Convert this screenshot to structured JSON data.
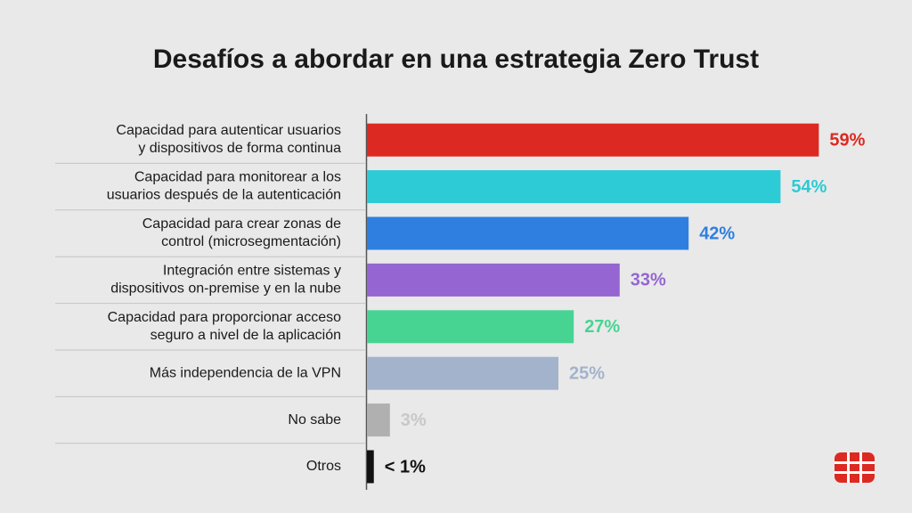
{
  "chart_data": {
    "type": "bar",
    "orientation": "horizontal",
    "title": "Desafíos a abordar en una estrategia Zero Trust",
    "categories": [
      "Capacidad para autenticar usuarios\ny dispositivos de forma continua",
      "Capacidad para monitorear a los\nusuarios después de la autenticación",
      "Capacidad para crear zonas de\ncontrol (microsegmentación)",
      "Integración entre sistemas y\ndispositivos on-premise y en la nube",
      "Capacidad para proporcionar acceso\nseguro a nivel de la aplicación",
      "Más independencia de la VPN",
      "No sabe",
      "Otros"
    ],
    "values": [
      59,
      54,
      42,
      33,
      27,
      25,
      3,
      0.9
    ],
    "value_labels": [
      "59%",
      "54%",
      "42%",
      "33%",
      "27%",
      "25%",
      "3%",
      "< 1%"
    ],
    "colors": [
      "#dc2a22",
      "#2ccbd6",
      "#2e7fe0",
      "#9566d1",
      "#47d493",
      "#a3b3cb",
      "#b0b0b0",
      "#111111"
    ],
    "label_colors": [
      "#dc2a22",
      "#2ccbd6",
      "#2e7fe0",
      "#9566d1",
      "#47d493",
      "#a3b3cb",
      "#c8c8c8",
      "#111111"
    ]
  }
}
